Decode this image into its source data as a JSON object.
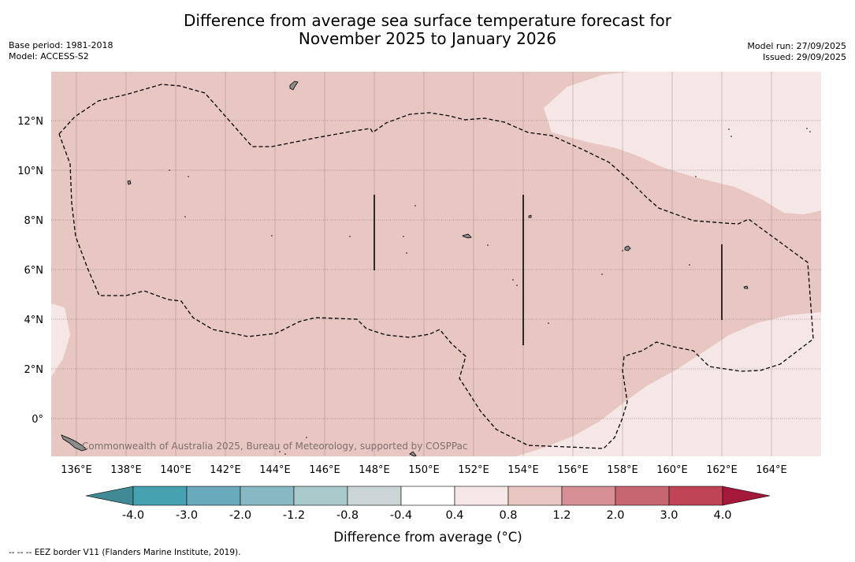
{
  "title": {
    "line1": "Difference from average sea surface temperature forecast for",
    "line2": "November 2025 to January 2026"
  },
  "meta_left": {
    "base_period": "Base period: 1981-2018",
    "model": "Model: ACCESS-S2"
  },
  "meta_right": {
    "model_run": "Model run: 27/09/2025",
    "issued": "Issued: 29/09/2025"
  },
  "map": {
    "copyright": "Commonwealth of Australia 2025, Bureau of Meteorology, supported by COSPPac",
    "lon_labels": [
      "136°E",
      "138°E",
      "140°E",
      "142°E",
      "144°E",
      "146°E",
      "148°E",
      "150°E",
      "152°E",
      "154°E",
      "156°E",
      "158°E",
      "160°E",
      "162°E",
      "164°E"
    ],
    "lat_labels": [
      "12°N",
      "10°N",
      "8°N",
      "6°N",
      "4°N",
      "2°N",
      "0°"
    ]
  },
  "colorbar": {
    "label": "Difference from average (°C)",
    "tick_labels": [
      "-4.0",
      "-3.0",
      "-2.0",
      "-1.2",
      "-0.8",
      "-0.4",
      "0.4",
      "0.8",
      "1.2",
      "2.0",
      "3.0",
      "4.0"
    ],
    "bins": [
      {
        "range": "-4.0 to -3.0",
        "color": "#46a1b0"
      },
      {
        "range": "-3.0 to -2.0",
        "color": "#69abbc"
      },
      {
        "range": "-2.0 to -1.2",
        "color": "#88b8c3"
      },
      {
        "range": "-1.2 to -0.8",
        "color": "#a9c9cb"
      },
      {
        "range": "-0.8 to -0.4",
        "color": "#cbd5d6"
      },
      {
        "range": "-0.4 to 0.4",
        "color": "#ffffff"
      },
      {
        "range": "0.4 to 0.8",
        "color": "#f5e7e5"
      },
      {
        "range": "0.8 to 1.2",
        "color": "#e8c7c2"
      },
      {
        "range": "1.2 to 2.0",
        "color": "#d58f95"
      },
      {
        "range": "2.0 to 3.0",
        "color": "#c76670"
      },
      {
        "range": "3.0 to 4.0",
        "color": "#bf4556"
      }
    ],
    "under_color": "#3f8a94",
    "over_color": "#a4183a"
  },
  "footer": "--  --  -- EEZ border V11 (Flanders Marine Institute, 2019)."
}
